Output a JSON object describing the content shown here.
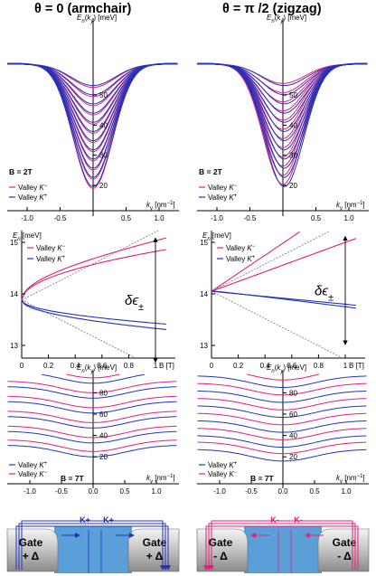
{
  "titles": {
    "left": "θ = 0 (armchair)",
    "right": "θ = π /2 (zigzag)"
  },
  "colors": {
    "valley_k_minus": "#e0207a",
    "valley_k_plus": "#2233bb",
    "guide": "#777777",
    "channel": "#5a9fd8",
    "gate": "#a8a8a8"
  },
  "band_panel": {
    "ylabel": "E_n(k_y) [meV]",
    "xlabel": "k_y [nm^-1]",
    "field_label": "B = 2T",
    "legend": [
      "Valley K^-",
      "Valley K^+"
    ],
    "yticks": [
      "20",
      "30",
      "40",
      "50"
    ],
    "xticks": [
      "-1.0",
      "-0.5",
      "0.5",
      "1.0"
    ]
  },
  "split_panel": {
    "ylabel": "E_n [meV]",
    "xlabel": "B [T]",
    "legend": [
      "Valley K^-",
      "Valley K^+"
    ],
    "yticks": [
      "15",
      "14",
      "13"
    ],
    "xticks": [
      "0",
      "0.2",
      "0.4",
      "0.6",
      "0.8",
      "1"
    ],
    "delta_label": "δε±"
  },
  "band7_panel": {
    "ylabel": "E_n(k_y) [meV]",
    "xlabel": "k_y [nm^-1]",
    "field_label": "B = 7T",
    "legend": [
      "Valley K^+",
      "Valley K^-"
    ],
    "yticks": [
      "20",
      "40",
      "60",
      "80"
    ],
    "xticks": [
      "-1.0",
      "-0.5",
      "0.0",
      "0.5",
      "1.0"
    ]
  },
  "gates": {
    "left": {
      "label": "Gate",
      "sign": "+ Δ",
      "arrow_label": "K+"
    },
    "right": {
      "label": "Gate",
      "sign": "- Δ",
      "arrow_label": "K-"
    }
  }
}
